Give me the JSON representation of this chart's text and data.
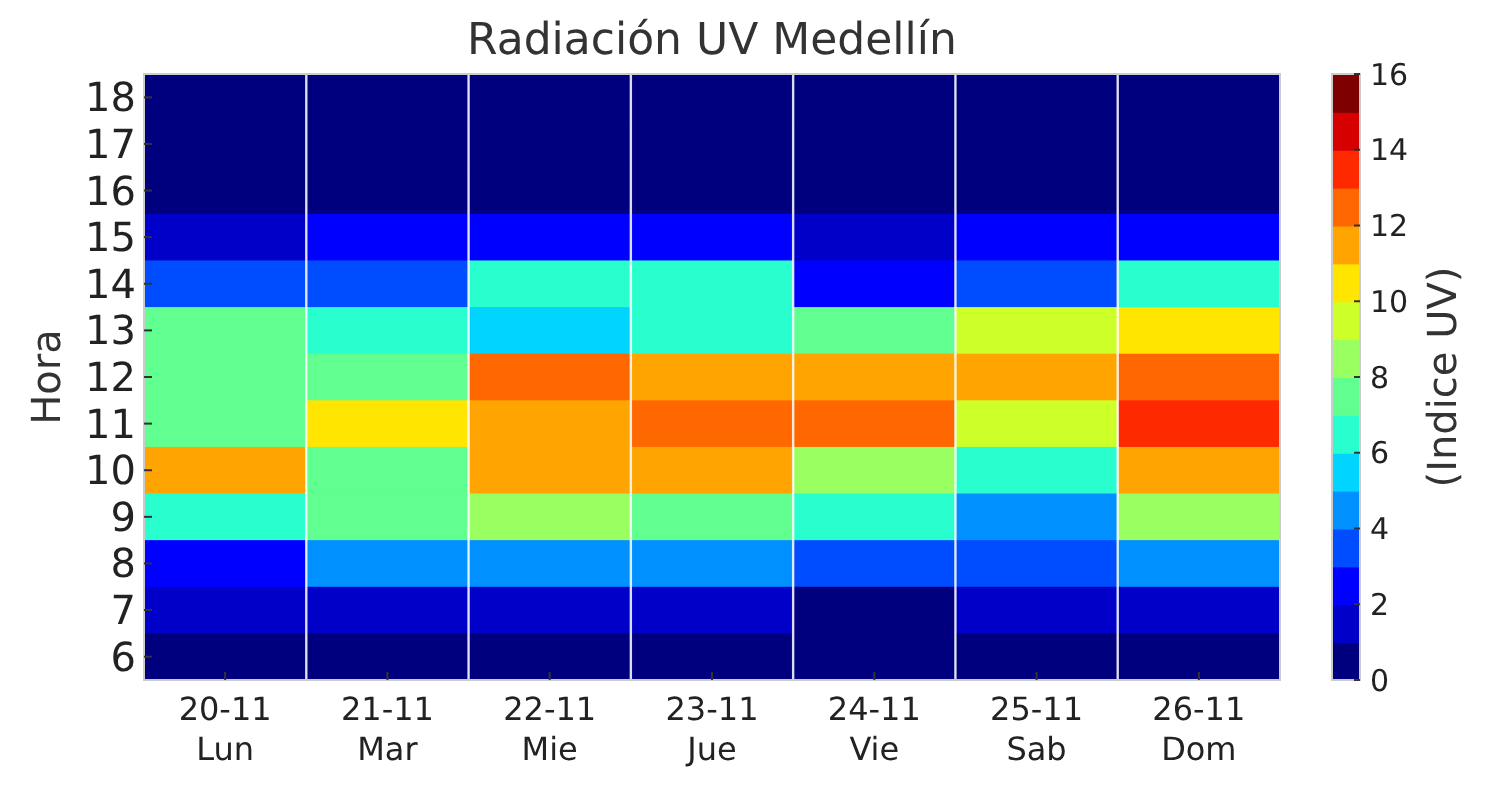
{
  "chart_data": {
    "type": "heatmap",
    "title": "Radiación UV Medellín",
    "ylabel": "Hora",
    "clabel": "(Indice UV)",
    "categories": [
      "20-11\nLun",
      "21-11\nMar",
      "22-11\nMie",
      "23-11\nJue",
      "24-11\nVie",
      "25-11\nSab",
      "26-11\nDom"
    ],
    "y_categories": [
      "18",
      "17",
      "16",
      "15",
      "14",
      "13",
      "12",
      "11",
      "10",
      "9",
      "8",
      "7",
      "6"
    ],
    "cells": [
      [
        0,
        0,
        0,
        0,
        0,
        0,
        0
      ],
      [
        0,
        0,
        0,
        0,
        0,
        0,
        0
      ],
      [
        0,
        0,
        0,
        0,
        0,
        0,
        0
      ],
      [
        1,
        2,
        2,
        2,
        1,
        2,
        2
      ],
      [
        3,
        3,
        6,
        6,
        2,
        3,
        6
      ],
      [
        7,
        6,
        5,
        6,
        7,
        9,
        10
      ],
      [
        7,
        7,
        12,
        11,
        11,
        11,
        12
      ],
      [
        7,
        10,
        11,
        12,
        12,
        9,
        13
      ],
      [
        11,
        7,
        11,
        11,
        8,
        6,
        11
      ],
      [
        6,
        7,
        8,
        7,
        6,
        4,
        8
      ],
      [
        2,
        4,
        4,
        4,
        3,
        3,
        4
      ],
      [
        1,
        1,
        1,
        1,
        0,
        1,
        1
      ],
      [
        0,
        0,
        0,
        0,
        0,
        0,
        0
      ]
    ],
    "clim": [
      0,
      16
    ],
    "cticks": [
      0,
      2,
      4,
      6,
      8,
      10,
      12,
      14,
      16
    ]
  }
}
